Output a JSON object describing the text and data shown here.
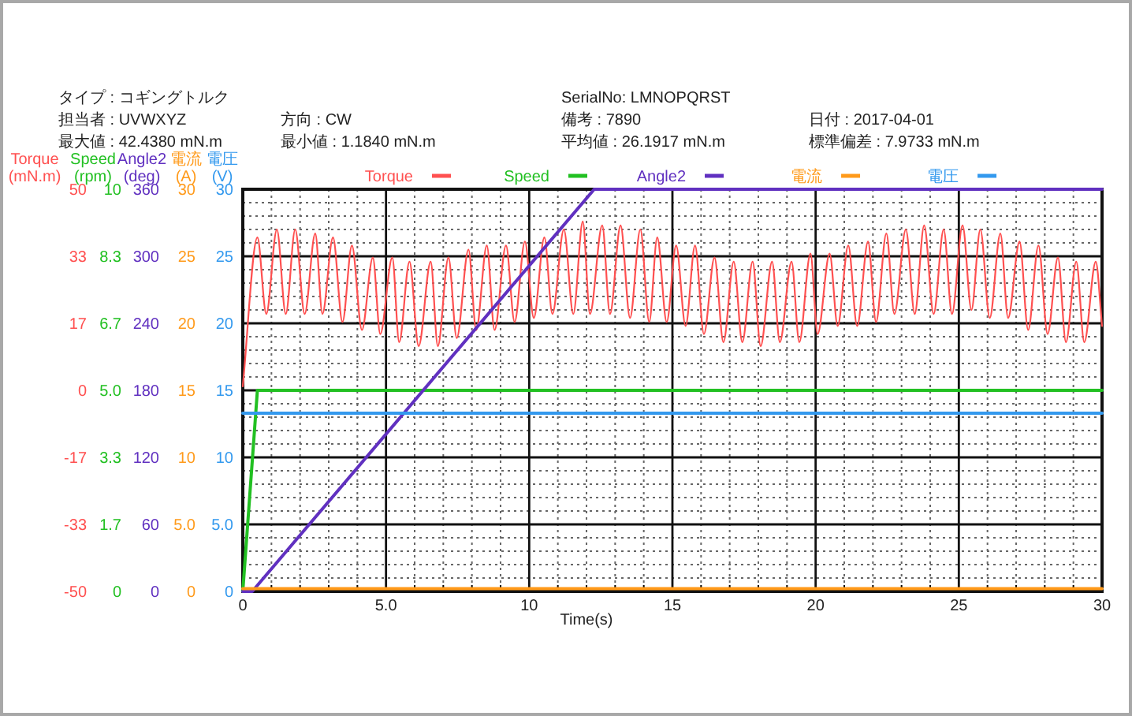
{
  "chart_data": [
    {
      "type": "line",
      "xlabel": "Time(s)",
      "ylabel": "Torque (mN.m)",
      "y2label": "Speed (rpm)",
      "y3label": "Angle2 (deg)",
      "annotations": [
        "タイプ : コギングトルク",
        "SerialNo: LMNOPQRST",
        "担当者 : UVWXYZ",
        "方向 : CW",
        "備考 : 7890",
        "日付 : 2017-04-01",
        "最大値 : 42.4380 mN.m",
        "最小値 : 1.1840 mN.m",
        "平均値 : 26.1917 mN.m",
        "標準偏差 : 7.9733 mN.m"
      ],
      "xlim": [
        0,
        30
      ],
      "xticks": [
        0,
        {
          "value": 5,
          "label": "5.0"
        },
        10,
        15,
        20,
        25,
        30
      ],
      "ylim": [
        -50,
        50
      ],
      "yticks": [
        -50,
        {
          "value": -33.33,
          "label": "-33"
        },
        {
          "value": -16.67,
          "label": "-17"
        },
        0,
        {
          "value": 16.67,
          "label": "17"
        },
        {
          "value": 33.33,
          "label": "33"
        },
        50
      ],
      "y2lim": [
        0,
        10
      ],
      "y2ticks": [
        0,
        {
          "value": 1.667,
          "label": "1.7"
        },
        {
          "value": 3.333,
          "label": "3.3"
        },
        {
          "value": 5,
          "label": "5.0"
        },
        {
          "value": 6.667,
          "label": "6.7"
        },
        {
          "value": 8.333,
          "label": "8.3"
        },
        10
      ],
      "y3lim": [
        0,
        360
      ],
      "y3ticks": [
        0,
        60,
        120,
        180,
        240,
        300,
        360
      ],
      "series": [
        {
          "name": "Torque",
          "color": "#ff5050",
          "x": [
            0,
            0.51,
            0.82,
            1.19,
            1.5,
            1.83,
            2.16,
            2.53,
            2.78,
            3.15,
            3.48,
            3.81,
            4.16,
            4.54,
            4.8,
            5.22,
            5.46,
            5.82,
            6.14,
            6.56,
            6.81,
            7.18,
            7.47,
            7.88,
            8.15,
            8.52,
            8.79,
            9.19,
            9.49,
            9.85,
            10.16,
            10.53,
            10.81,
            11.21,
            11.54,
            11.87,
            12.12,
            12.55,
            12.82,
            13.19,
            13.52,
            13.88,
            14.19,
            14.47,
            14.8,
            15.13,
            15.46,
            15.79,
            16.1,
            16.47,
            16.78,
            17.14,
            17.44,
            17.8,
            18.08,
            18.48,
            18.75,
            19.16,
            19.43,
            19.82,
            20.07,
            20.49,
            20.77,
            21.14,
            21.45,
            21.83,
            22.11,
            22.47,
            22.75,
            23.15,
            23.46,
            23.79,
            24.12,
            24.47,
            24.76,
            25.13,
            25.44,
            25.75,
            26.08,
            26.45,
            26.72,
            27.12,
            27.42,
            27.78,
            28.1,
            28.46,
            28.74,
            29.1,
            29.38,
            29.78,
            30
          ],
          "values": [
            1,
            38,
            19,
            40,
            19,
            40,
            19,
            39,
            19,
            38,
            17,
            36,
            15,
            33,
            14,
            33,
            12,
            32,
            11,
            32,
            11,
            33,
            13,
            35,
            15,
            36,
            15,
            36,
            17,
            37,
            18,
            38,
            19,
            40,
            19,
            42,
            19,
            41,
            19,
            41,
            18,
            40,
            17,
            38,
            17,
            36,
            16,
            36,
            14,
            33,
            12,
            32,
            12,
            32,
            11,
            32,
            12,
            32,
            12,
            34,
            14,
            34,
            16,
            36,
            16,
            37,
            17,
            39,
            19,
            40,
            19,
            41,
            19,
            40,
            19,
            41,
            20,
            40,
            18,
            39,
            18,
            37,
            15,
            36,
            14,
            33,
            12,
            32,
            12,
            32,
            16
          ]
        },
        {
          "name": "Speed",
          "color": "#22c022",
          "axis": "y2",
          "x": [
            0,
            0.51,
            30
          ],
          "values": [
            0,
            5,
            5
          ]
        },
        {
          "name": "Angle2",
          "color": "#6030c0",
          "axis": "y3",
          "x": [
            0,
            0.33,
            12.27,
            30
          ],
          "values": [
            0,
            0,
            360,
            360
          ]
        }
      ],
      "grid": true,
      "legend": "top"
    },
    {
      "type": "line",
      "ylabel": "電流 (A)",
      "y2label": "電圧 (V)",
      "tick_labels": "y",
      "xlim": [
        0,
        30
      ],
      "ylim": [
        0,
        30
      ],
      "yticks": [
        0,
        {
          "value": 5,
          "label": "5.0"
        },
        10,
        15,
        20,
        25,
        30
      ],
      "y2lim": [
        0,
        30
      ],
      "y2ticks": [
        0,
        {
          "value": 5,
          "label": "5.0"
        },
        10,
        15,
        20,
        25,
        30
      ],
      "series": [
        {
          "name": "電流",
          "color": "#ff9a1a",
          "x": [
            0,
            30
          ],
          "values": [
            0.2,
            0.2
          ]
        },
        {
          "name": "電圧",
          "color": "#3399ee",
          "axis": "y2",
          "x": [
            0,
            30
          ],
          "values": [
            13.3,
            13.3
          ]
        }
      ],
      "legend": "top"
    }
  ]
}
